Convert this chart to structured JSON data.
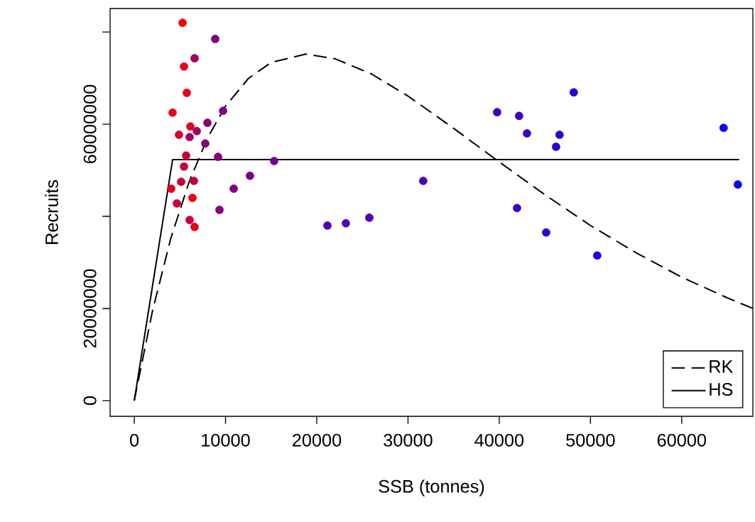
{
  "chart_data": {
    "type": "scatter",
    "xlabel": "SSB (tonnes)",
    "ylabel": "Recruits",
    "xlim": [
      -2650,
      67800
    ],
    "ylim": [
      -3400000,
      85100000
    ],
    "xticks": [
      0,
      10000,
      20000,
      30000,
      40000,
      50000,
      60000
    ],
    "yticks": [
      0,
      20000000,
      {
        "value": 40000000,
        "label": null
      },
      60000000,
      {
        "value": 80000000,
        "label": null
      }
    ],
    "grid": false,
    "legend": "bottom right",
    "series": [
      {
        "marker": "circle",
        "x": [
          5290,
          8870,
          6610,
          5450,
          5760,
          4200,
          9730,
          8020,
          6150,
          6850,
          4900,
          6070,
          7780,
          5680,
          9180,
          5450,
          15330,
          12680,
          5140,
          6540,
          4050,
          10900,
          6380,
          4670,
          9340,
          6070,
          6610,
          21170,
          23190,
          25760,
          31670,
          39770,
          42180,
          43040,
          41950,
          46610,
          46230,
          45140,
          48170,
          50740,
          64590,
          66150
        ],
        "values": [
          82000000,
          78500000,
          74300000,
          72500000,
          66800000,
          62500000,
          62900000,
          60300000,
          59500000,
          58500000,
          57700000,
          57200000,
          55800000,
          53200000,
          52900000,
          50800000,
          52000000,
          48800000,
          47500000,
          47700000,
          46000000,
          46000000,
          44000000,
          42800000,
          41400000,
          39200000,
          37700000,
          38000000,
          38500000,
          39700000,
          47700000,
          62600000,
          61800000,
          58000000,
          41800000,
          57700000,
          55100000,
          36500000,
          66900000,
          31500000,
          59200000,
          46900000
        ],
        "colors": [
          "#f00010",
          "#800080",
          "#a00060",
          "#ee0018",
          "#e8001c",
          "#e80020",
          "#800080",
          "#880078",
          "#e00020",
          "#a00060",
          "#d00030",
          "#a00060",
          "#880078",
          "#c80038",
          "#880078",
          "#c80038",
          "#780090",
          "#800080",
          "#c80038",
          "#c00040",
          "#e0001c",
          "#800080",
          "#f00010",
          "#c80038",
          "#880078",
          "#c80038",
          "#f00010",
          "#5000b0",
          "#5000b0",
          "#5000b0",
          "#5000b0",
          "#4000c0",
          "#4000c0",
          "#4000c0",
          "#4000c0",
          "#3000d0",
          "#3000d0",
          "#3000d0",
          "#2800d8",
          "#2000e0",
          "#1000f0",
          "#1000f0"
        ]
      },
      {
        "type": "line",
        "name": "RK",
        "line_style": "dashed",
        "color": "#000000",
        "x": [
          0,
          2000,
          4000,
          6000,
          8000,
          10000,
          12500,
          15000,
          18800,
          22000,
          26000,
          30000,
          35000,
          40000,
          45000,
          50000,
          55000,
          60000,
          65000,
          67800
        ],
        "values": [
          0,
          19500000,
          35200000,
          47400000,
          56900000,
          63900000,
          69900000,
          73400000,
          75200000,
          74200000,
          70900000,
          66100000,
          59100000,
          51800000,
          44700000,
          38000000,
          32100000,
          26800000,
          22300000,
          20000000
        ]
      },
      {
        "type": "line",
        "name": "HS",
        "line_style": "solid",
        "color": "#000000",
        "x": [
          0,
          4200,
          66300
        ],
        "values": [
          0,
          52300000,
          52300000
        ]
      }
    ]
  }
}
